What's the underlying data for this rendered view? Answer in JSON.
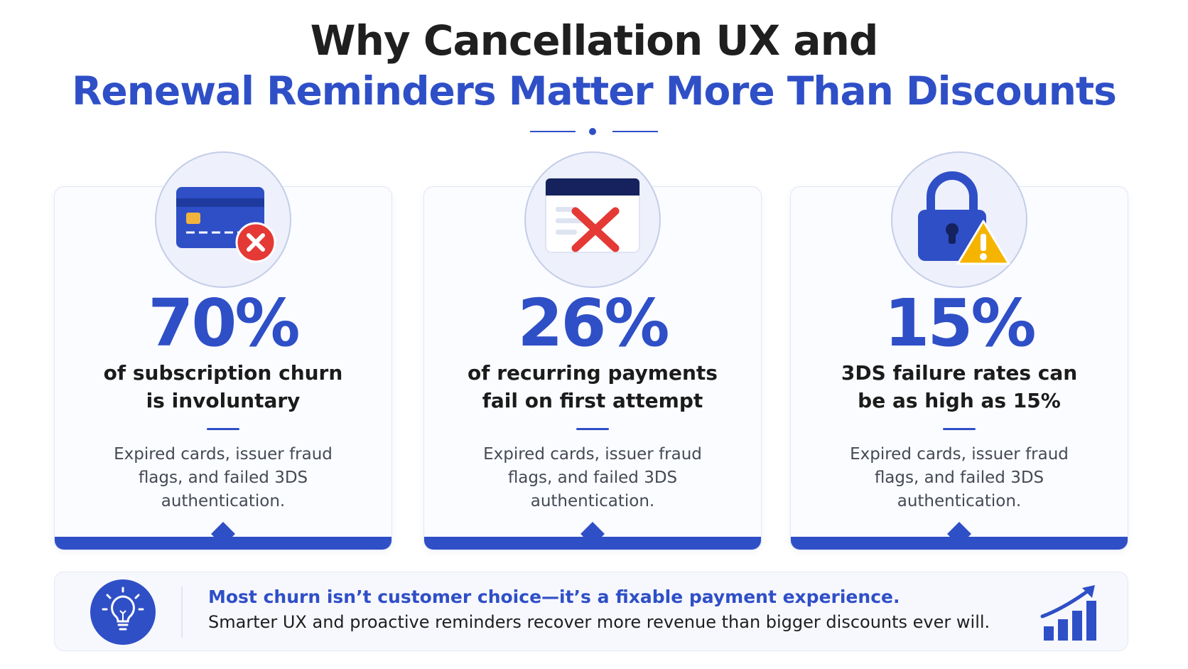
{
  "title": {
    "line1": "Why Cancellation UX and",
    "line2": "Renewal Reminders Matter More Than Discounts"
  },
  "cards": [
    {
      "stat": "70%",
      "headline": [
        "of subscription churn",
        "is involuntary"
      ],
      "description": [
        "Expired cards, issuer fraud",
        "flags, and failed 3DS",
        "authentication."
      ],
      "icon": "credit-card-declined-icon"
    },
    {
      "stat": "26%",
      "headline": [
        "of recurring payments",
        "fail on first attempt"
      ],
      "description": [
        "Expired cards, issuer fraud",
        "flags, and failed 3DS",
        "authentication."
      ],
      "icon": "failed-payment-window-icon"
    },
    {
      "stat": "15%",
      "headline": [
        "3DS failure rates can",
        "be as high as 15%"
      ],
      "description": [
        "Expired cards, issuer fraud",
        "flags, and failed 3DS",
        "authentication."
      ],
      "icon": "padlock-warning-icon"
    }
  ],
  "footer": {
    "headline": "Most churn isn’t customer choice—it’s a fixable payment experience.",
    "body": "Smarter UX and proactive reminders recover more revenue than bigger discounts ever will.",
    "left_icon": "lightbulb-icon",
    "right_icon": "growth-chart-icon"
  },
  "colors": {
    "accent": "#2f4fc7",
    "title_dark": "#1f1f1f",
    "error_red": "#e53935",
    "warning_yellow": "#f5b400"
  }
}
